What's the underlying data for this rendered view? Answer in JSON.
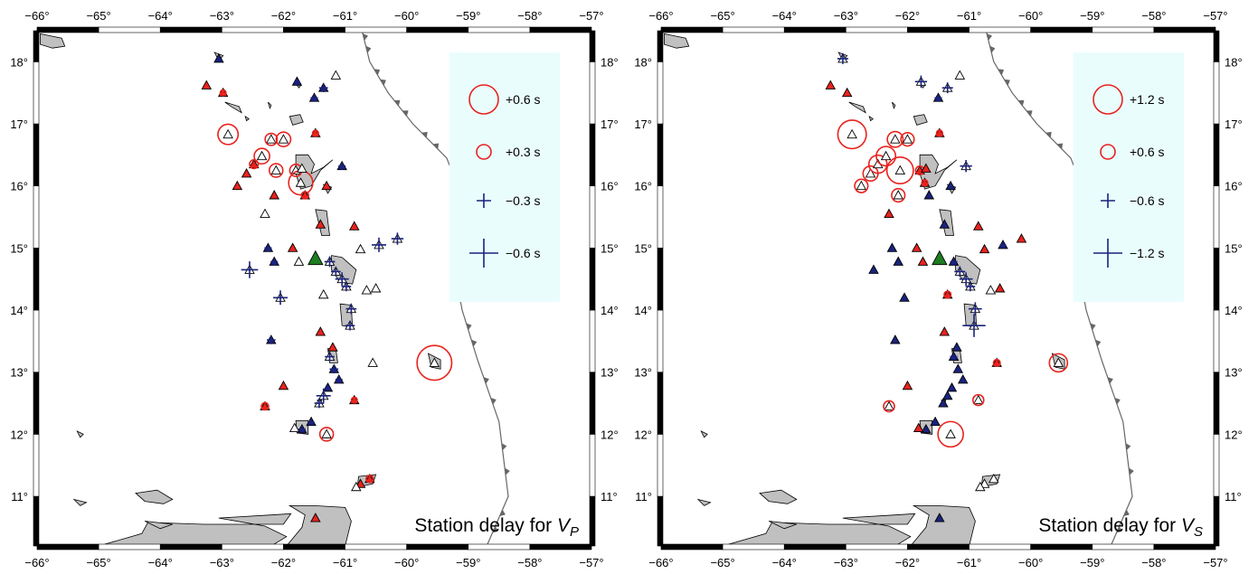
{
  "figure": {
    "panels": [
      {
        "id": "vp",
        "caption_text": "Station delay for ",
        "caption_var": "V",
        "caption_sub": "P",
        "legend": [
          {
            "label": "+0.6 s",
            "kind": "circle",
            "delay": 0.6
          },
          {
            "label": "+0.3 s",
            "kind": "circle",
            "delay": 0.3
          },
          {
            "label": "−0.3 s",
            "kind": "cross",
            "delay": 0.3
          },
          {
            "label": "−0.6 s",
            "kind": "cross",
            "delay": 0.6
          }
        ],
        "legend_ref": 0.6
      },
      {
        "id": "vs",
        "caption_text": "Station delay for ",
        "caption_var": "V",
        "caption_sub": "S",
        "legend": [
          {
            "label": "+1.2 s",
            "kind": "circle",
            "delay": 1.2
          },
          {
            "label": "+0.6 s",
            "kind": "circle",
            "delay": 0.6
          },
          {
            "label": "−0.6 s",
            "kind": "cross",
            "delay": 0.6
          },
          {
            "label": "−1.2 s",
            "kind": "cross",
            "delay": 1.2
          }
        ],
        "legend_ref": 1.2
      }
    ],
    "lon_ticks": [
      "−66°",
      "−65°",
      "−64°",
      "−63°",
      "−62°",
      "−61°",
      "−60°",
      "−59°",
      "−58°",
      "−57°"
    ],
    "lat_ticks": [
      "11°",
      "12°",
      "13°",
      "14°",
      "15°",
      "16°",
      "17°",
      "18°"
    ],
    "lon_values": [
      -66,
      -65,
      -64,
      -63,
      -62,
      -61,
      -60,
      -59,
      -58,
      -57
    ],
    "lat_values": [
      11,
      12,
      13,
      14,
      15,
      16,
      17,
      18
    ],
    "lon_range": [
      -66,
      -57
    ],
    "lat_range": [
      10.2,
      18.5
    ],
    "colors": {
      "positive_delay": "#e8231e",
      "negative_delay": "#1a237e",
      "station_fill": "#ffffff",
      "station_fill_positive": "#e8231e",
      "station_fill_negative": "#1a237e",
      "reference_station": "#1e7d22",
      "land": "#c0c0c0",
      "legend_box": "#eafdfd",
      "trench": "#666666"
    },
    "stations": [
      {
        "lon": -63.05,
        "lat": 18.05,
        "vp": -0.08,
        "vs": -0.45
      },
      {
        "lon": -63.25,
        "lat": 17.62,
        "vp": 0.08,
        "vs": 0.06
      },
      {
        "lon": -62.98,
        "lat": 17.5,
        "vp": 0.12,
        "vs": 0.12
      },
      {
        "lon": -62.9,
        "lat": 16.83,
        "vp": 0.42,
        "vs": 1.18
      },
      {
        "lon": -62.75,
        "lat": 16.0,
        "vp": 0.05,
        "vs": 0.55
      },
      {
        "lon": -62.6,
        "lat": 16.2,
        "vp": 0.1,
        "vs": 0.62
      },
      {
        "lon": -62.48,
        "lat": 16.35,
        "vp": 0.18,
        "vs": 0.75
      },
      {
        "lon": -62.35,
        "lat": 16.48,
        "vp": 0.32,
        "vs": 0.8
      },
      {
        "lon": -62.2,
        "lat": 16.75,
        "vp": 0.25,
        "vs": 0.65
      },
      {
        "lon": -62.0,
        "lat": 16.75,
        "vp": 0.3,
        "vs": 0.55
      },
      {
        "lon": -62.12,
        "lat": 16.25,
        "vp": 0.28,
        "vs": 1.1
      },
      {
        "lon": -62.15,
        "lat": 15.85,
        "vp": 0.1,
        "vs": 0.55
      },
      {
        "lon": -61.8,
        "lat": 16.25,
        "vp": 0.25,
        "vs": 0.35
      },
      {
        "lon": -61.72,
        "lat": 16.05,
        "vp": 0.5,
        "vs": 0.25
      },
      {
        "lon": -61.65,
        "lat": 15.85,
        "vp": 0.15,
        "vs": -0.05
      },
      {
        "lon": -61.48,
        "lat": 16.85,
        "vp": 0.12,
        "vs": 0.25
      },
      {
        "lon": -61.78,
        "lat": 17.68,
        "vp": -0.12,
        "vs": -0.5
      },
      {
        "lon": -61.5,
        "lat": 17.42,
        "vp": -0.15,
        "vs": -0.3
      },
      {
        "lon": -61.35,
        "lat": 17.58,
        "vp": -0.18,
        "vs": -0.45
      },
      {
        "lon": -61.15,
        "lat": 17.78,
        "vp": 0.0,
        "vs": 0.0
      },
      {
        "lon": -61.05,
        "lat": 16.32,
        "vp": -0.15,
        "vs": -0.5
      },
      {
        "lon": -61.3,
        "lat": 16.0,
        "vp": 0.1,
        "vs": -0.12
      },
      {
        "lon": -61.4,
        "lat": 15.38,
        "vp": 0.08,
        "vs": -0.08
      },
      {
        "lon": -62.3,
        "lat": 15.55,
        "vp": 0.0,
        "vs": 0.12
      },
      {
        "lon": -62.25,
        "lat": 15.0,
        "vp": -0.15,
        "vs": -0.12
      },
      {
        "lon": -62.15,
        "lat": 14.78,
        "vp": -0.15,
        "vs": -0.1
      },
      {
        "lon": -62.55,
        "lat": 14.65,
        "vp": -0.35,
        "vs": -0.12
      },
      {
        "lon": -61.85,
        "lat": 15.0,
        "vp": 0.05,
        "vs": 0.1
      },
      {
        "lon": -61.75,
        "lat": 14.78,
        "vp": 0.0,
        "vs": 0.1
      },
      {
        "lon": -62.05,
        "lat": 14.2,
        "vp": -0.3,
        "vs": -0.15
      },
      {
        "lon": -62.2,
        "lat": 13.52,
        "vp": -0.18,
        "vs": -0.2
      },
      {
        "lon": -61.35,
        "lat": 14.25,
        "vp": 0.0,
        "vs": 0.28
      },
      {
        "lon": -61.25,
        "lat": 14.78,
        "vp": -0.22,
        "vs": -0.3
      },
      {
        "lon": -61.15,
        "lat": 14.62,
        "vp": -0.2,
        "vs": -0.45
      },
      {
        "lon": -61.05,
        "lat": 14.5,
        "vp": -0.28,
        "vs": -0.55
      },
      {
        "lon": -60.98,
        "lat": 14.38,
        "vp": -0.2,
        "vs": -0.4
      },
      {
        "lon": -60.9,
        "lat": 14.02,
        "vp": -0.22,
        "vs": -0.55
      },
      {
        "lon": -60.92,
        "lat": 13.75,
        "vp": -0.2,
        "vs": -0.95
      },
      {
        "lon": -60.75,
        "lat": 14.98,
        "vp": 0.0,
        "vs": 0.05
      },
      {
        "lon": -60.85,
        "lat": 15.35,
        "vp": 0.08,
        "vs": 0.1
      },
      {
        "lon": -60.45,
        "lat": 15.05,
        "vp": -0.3,
        "vs": -0.25
      },
      {
        "lon": -60.15,
        "lat": 15.15,
        "vp": -0.25,
        "vs": 0.1
      },
      {
        "lon": -60.5,
        "lat": 14.35,
        "vp": 0.0,
        "vs": 0.18
      },
      {
        "lon": -60.65,
        "lat": 14.32,
        "vp": 0.0,
        "vs": 0.0
      },
      {
        "lon": -61.2,
        "lat": 13.4,
        "vp": 0.1,
        "vs": -0.1
      },
      {
        "lon": -61.25,
        "lat": 13.25,
        "vp": -0.2,
        "vs": -0.3
      },
      {
        "lon": -61.18,
        "lat": 13.05,
        "vp": -0.18,
        "vs": -0.25
      },
      {
        "lon": -61.1,
        "lat": 12.88,
        "vp": -0.15,
        "vs": -0.2
      },
      {
        "lon": -61.28,
        "lat": 12.75,
        "vp": -0.12,
        "vs": -0.12
      },
      {
        "lon": -61.35,
        "lat": 12.62,
        "vp": -0.3,
        "vs": -0.15
      },
      {
        "lon": -61.42,
        "lat": 12.5,
        "vp": -0.2,
        "vs": -0.12
      },
      {
        "lon": -61.55,
        "lat": 12.2,
        "vp": -0.12,
        "vs": -0.1
      },
      {
        "lon": -61.7,
        "lat": 12.08,
        "vp": -0.15,
        "vs": -0.15
      },
      {
        "lon": -61.82,
        "lat": 12.1,
        "vp": 0.0,
        "vs": 0.1
      },
      {
        "lon": -61.3,
        "lat": 12.0,
        "vp": 0.28,
        "vs": 1.05
      },
      {
        "lon": -62.0,
        "lat": 12.78,
        "vp": 0.05,
        "vs": 0.08
      },
      {
        "lon": -62.3,
        "lat": 12.45,
        "vp": 0.15,
        "vs": 0.45
      },
      {
        "lon": -60.85,
        "lat": 12.55,
        "vp": 0.12,
        "vs": 0.45
      },
      {
        "lon": -60.55,
        "lat": 13.15,
        "vp": 0.0,
        "vs": 0.28
      },
      {
        "lon": -59.55,
        "lat": 13.15,
        "vp": 0.72,
        "vs": 0.75
      },
      {
        "lon": -61.4,
        "lat": 13.65,
        "vp": 0.05,
        "vs": 0.05
      },
      {
        "lon": -60.6,
        "lat": 11.28,
        "vp": 0.15,
        "vs": 0.0
      },
      {
        "lon": -60.75,
        "lat": 11.2,
        "vp": 0.08,
        "vs": 0.0
      },
      {
        "lon": -60.82,
        "lat": 11.15,
        "vp": 0.0,
        "vs": 0.0
      },
      {
        "lon": -61.48,
        "lat": 10.65,
        "vp": 0.08,
        "vs": -0.05
      },
      {
        "lon": -61.7,
        "lat": 16.28,
        "vp": 0.0,
        "vs": 0.12
      }
    ],
    "reference_station": {
      "lon": -61.48,
      "lat": 14.82
    }
  }
}
